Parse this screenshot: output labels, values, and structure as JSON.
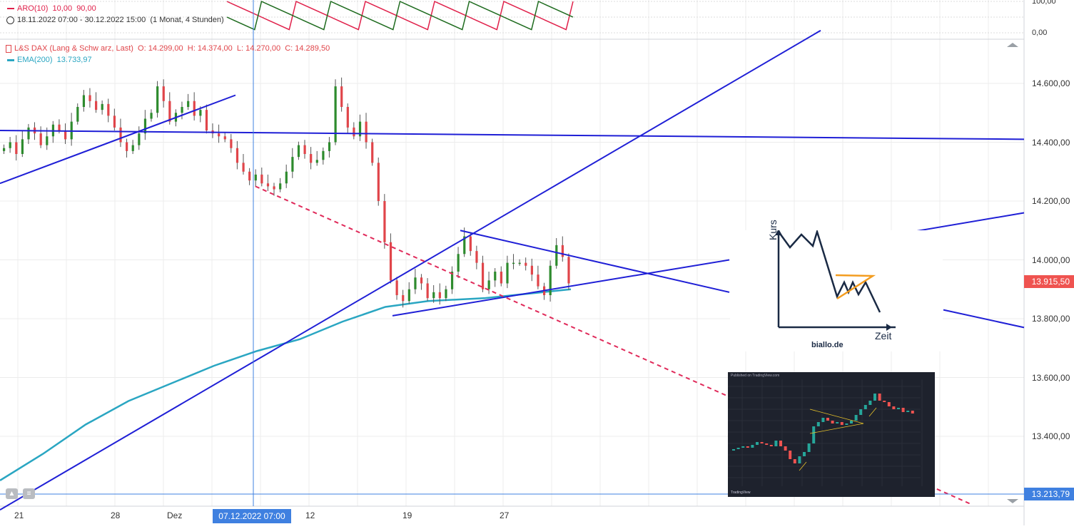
{
  "theme": {
    "grid": "#ececec",
    "candle_up": "#2e8b2e",
    "candle_down": "#e0454a",
    "trendline": "#1f1fd6",
    "dashed_line": "#e02a5a",
    "ema": "#2aa6c2",
    "price_badge": "#ef5350",
    "axis_badge": "#3f80e0",
    "aro_line": "#e0204a",
    "aro_line_2": "#1e6b1e"
  },
  "aroon": {
    "label": "ARO(10)",
    "value_a": "10,00",
    "value_b": "90,00",
    "axis_ticks": [
      "100,00",
      "0,00"
    ]
  },
  "range_info": {
    "clock_icon": "clock-icon",
    "text": "18.11.2022 07:00 - 30.12.2022 15:00",
    "interval": "(1 Monat, 4 Stunden)"
  },
  "main_legend": {
    "symbol": "L&S DAX (Lang & Schw arz, Last)",
    "o": "O: 14.299,00",
    "h": "H: 14.374,00",
    "l": "L: 14.270,00",
    "c": "C: 14.289,50",
    "ema_label": "EMA(200)",
    "ema_value": "13.733,97"
  },
  "price_axis": {
    "ticks": [
      "14.600,00",
      "14.400,00",
      "14.200,00",
      "14.000,00",
      "13.800,00",
      "13.600,00",
      "13.400,00"
    ],
    "last_price": "13.915,50",
    "crosshair_price": "13.213,79"
  },
  "time_axis": {
    "ticks": [
      "21",
      "28",
      "Dez",
      "12",
      "19",
      "27"
    ],
    "crosshair_time": "07.12.2022 07:00"
  },
  "inset_sketch": {
    "y_label": "Kurs",
    "x_label": "Zeit",
    "source": "biallo.de"
  },
  "chart_data": {
    "type": "candlestick",
    "title": "L&S DAX (Lang & Schw arz, Last)",
    "timeframe": "4 Stunden",
    "ylim": [
      13200,
      14700
    ],
    "xlabels": [
      "21",
      "28",
      "Dez",
      "12",
      "19",
      "27"
    ],
    "ohlc_last": {
      "open": 14299.0,
      "high": 14374.0,
      "low": 14270.0,
      "close": 14289.5
    },
    "ema200_last": 13733.97,
    "last_price": 13915.5,
    "candles_close": [
      14380,
      14400,
      14360,
      14410,
      14450,
      14430,
      14390,
      14420,
      14460,
      14440,
      14410,
      14470,
      14520,
      14560,
      14540,
      14510,
      14530,
      14490,
      14450,
      14400,
      14370,
      14390,
      14430,
      14480,
      14500,
      14590,
      14540,
      14470,
      14500,
      14520,
      14540,
      14490,
      14510,
      14440,
      14430,
      14420,
      14410,
      14380,
      14330,
      14300,
      14270,
      14290,
      14260,
      14250,
      14240,
      14260,
      14300,
      14350,
      14390,
      14360,
      14330,
      14340,
      14370,
      14400,
      14590,
      14520,
      14450,
      14420,
      14470,
      14400,
      14330,
      14200,
      14060,
      13930,
      13880,
      13860,
      13900,
      13940,
      13920,
      13870,
      13890,
      13870,
      13900,
      13960,
      14020,
      14080,
      14030,
      13990,
      13900,
      13930,
      13960,
      13920,
      13990,
      13990,
      13990,
      13980,
      13950,
      13910,
      13880,
      13980,
      14050,
      14010,
      13920
    ],
    "ema200": [
      [
        0,
        13250
      ],
      [
        60,
        13340
      ],
      [
        120,
        13440
      ],
      [
        180,
        13520
      ],
      [
        240,
        13580
      ],
      [
        300,
        13640
      ],
      [
        360,
        13690
      ],
      [
        420,
        13730
      ],
      [
        480,
        13790
      ],
      [
        540,
        13840
      ],
      [
        600,
        13860
      ],
      [
        680,
        13870
      ],
      [
        800,
        13900
      ]
    ],
    "lines": [
      {
        "kind": "trend",
        "from": [
          0,
          14260
        ],
        "to": [
          330,
          14560
        ]
      },
      {
        "kind": "horizontal",
        "from": [
          0,
          14440
        ],
        "to": [
          1435,
          14410
        ]
      },
      {
        "kind": "trend",
        "from": [
          0,
          13150
        ],
        "to": [
          1150,
          14780
        ]
      },
      {
        "kind": "triangle-top",
        "from": [
          645,
          14100
        ],
        "to": [
          1022,
          13890
        ]
      },
      {
        "kind": "triangle-bottom",
        "from": [
          550,
          13810
        ],
        "to": [
          1022,
          14000
        ]
      },
      {
        "kind": "trend",
        "from": [
          1265,
          14090
        ],
        "to": [
          1435,
          14160
        ]
      },
      {
        "kind": "trend",
        "from": [
          1322,
          13830
        ],
        "to": [
          1435,
          13770
        ]
      },
      {
        "kind": "dashed",
        "from": [
          358,
          14250
        ],
        "to": [
          1360,
          13170
        ]
      }
    ]
  },
  "inset_screenshot": {
    "header": "Published on TradingView.com",
    "logo": "TradingView"
  }
}
